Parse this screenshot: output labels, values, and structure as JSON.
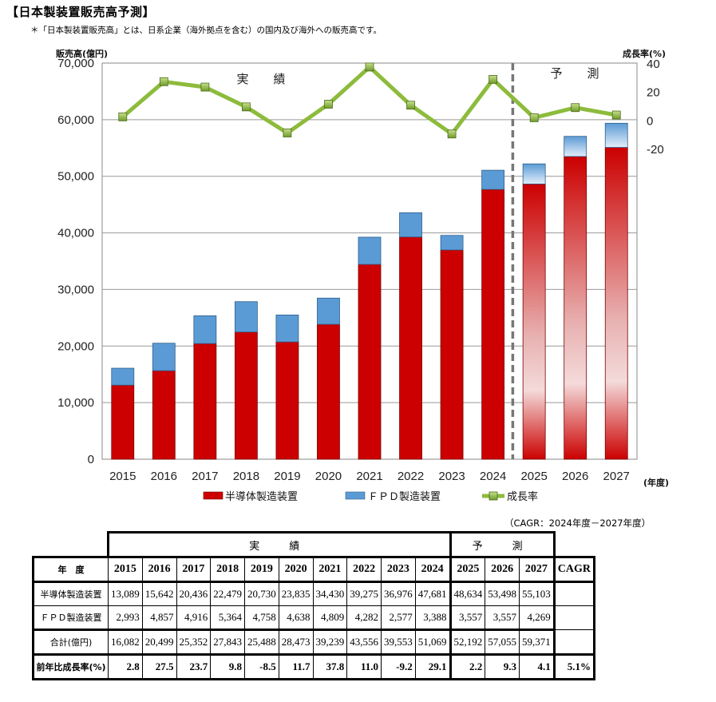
{
  "title": "【日本製装置販売高予測】",
  "note": "＊「日本製装置販売高」とは、日系企業（海外拠点を含む）の国内及び海外への販売高です。",
  "cagr_note": "（CAGR：2024年度－2027年度）",
  "chart_data": {
    "type": "bar",
    "categories": [
      "2015",
      "2016",
      "2017",
      "2018",
      "2019",
      "2020",
      "2021",
      "2022",
      "2023",
      "2024",
      "2025",
      "2026",
      "2027"
    ],
    "series": [
      {
        "name": "半導体製造装置",
        "type": "stacked-bar",
        "color": "#cc0000",
        "values": [
          13089,
          15642,
          20436,
          22479,
          20730,
          23835,
          34430,
          39275,
          36976,
          47681,
          48634,
          53498,
          55103
        ]
      },
      {
        "name": "ＦＰＤ製造装置",
        "type": "stacked-bar",
        "color": "#5b9bd5",
        "values": [
          2993,
          4857,
          4916,
          5364,
          4758,
          4638,
          4809,
          4282,
          2577,
          3388,
          3557,
          3557,
          4269
        ]
      },
      {
        "name": "成長率",
        "type": "line",
        "axis": "right",
        "color": "#8dbb3c",
        "values": [
          2.8,
          27.5,
          23.7,
          9.8,
          -8.5,
          11.7,
          37.8,
          11.0,
          -9.2,
          29.1,
          2.2,
          9.3,
          4.1
        ]
      }
    ],
    "ylabel": "販売高(億円)",
    "ylabel_right": "成長率(%)",
    "xlabel": "(年度)",
    "ylim": [
      0,
      70000
    ],
    "yticks": [
      "0",
      "10,000",
      "20,000",
      "30,000",
      "40,000",
      "50,000",
      "60,000",
      "70,000"
    ],
    "ylim_right": [
      -20,
      40
    ],
    "yticks_right": [
      "-20",
      "0",
      "20",
      "40"
    ],
    "section_actual": "実　績",
    "section_forecast": "予　測",
    "forecast_start_index": 10,
    "grid": true
  },
  "table": {
    "header_actual": "実　績",
    "header_forecast": "予　測",
    "year_label": "年　度",
    "years": [
      "2015",
      "2016",
      "2017",
      "2018",
      "2019",
      "2020",
      "2021",
      "2022",
      "2023",
      "2024",
      "2025",
      "2026",
      "2027"
    ],
    "cagr_label": "CAGR",
    "rows": [
      {
        "label": "半導体製造装置",
        "values": [
          "13,089",
          "15,642",
          "20,436",
          "22,479",
          "20,730",
          "23,835",
          "34,430",
          "39,275",
          "36,976",
          "47,681",
          "48,634",
          "53,498",
          "55,103"
        ],
        "cagr": ""
      },
      {
        "label": "ＦＰＤ製造装置",
        "values": [
          "2,993",
          "4,857",
          "4,916",
          "5,364",
          "4,758",
          "4,638",
          "4,809",
          "4,282",
          "2,577",
          "3,388",
          "3,557",
          "3,557",
          "4,269"
        ],
        "cagr": ""
      },
      {
        "label": "合計(億円)",
        "values": [
          "16,082",
          "20,499",
          "25,352",
          "27,843",
          "25,488",
          "28,473",
          "39,239",
          "43,556",
          "39,553",
          "51,069",
          "52,192",
          "57,055",
          "59,371"
        ],
        "cagr": ""
      },
      {
        "label": "前年比成長率(%)",
        "values": [
          "2.8",
          "27.5",
          "23.7",
          "9.8",
          "-8.5",
          "11.7",
          "37.8",
          "11.0",
          "-9.2",
          "29.1",
          "2.2",
          "9.3",
          "4.1"
        ],
        "cagr": "5.1%"
      }
    ]
  }
}
